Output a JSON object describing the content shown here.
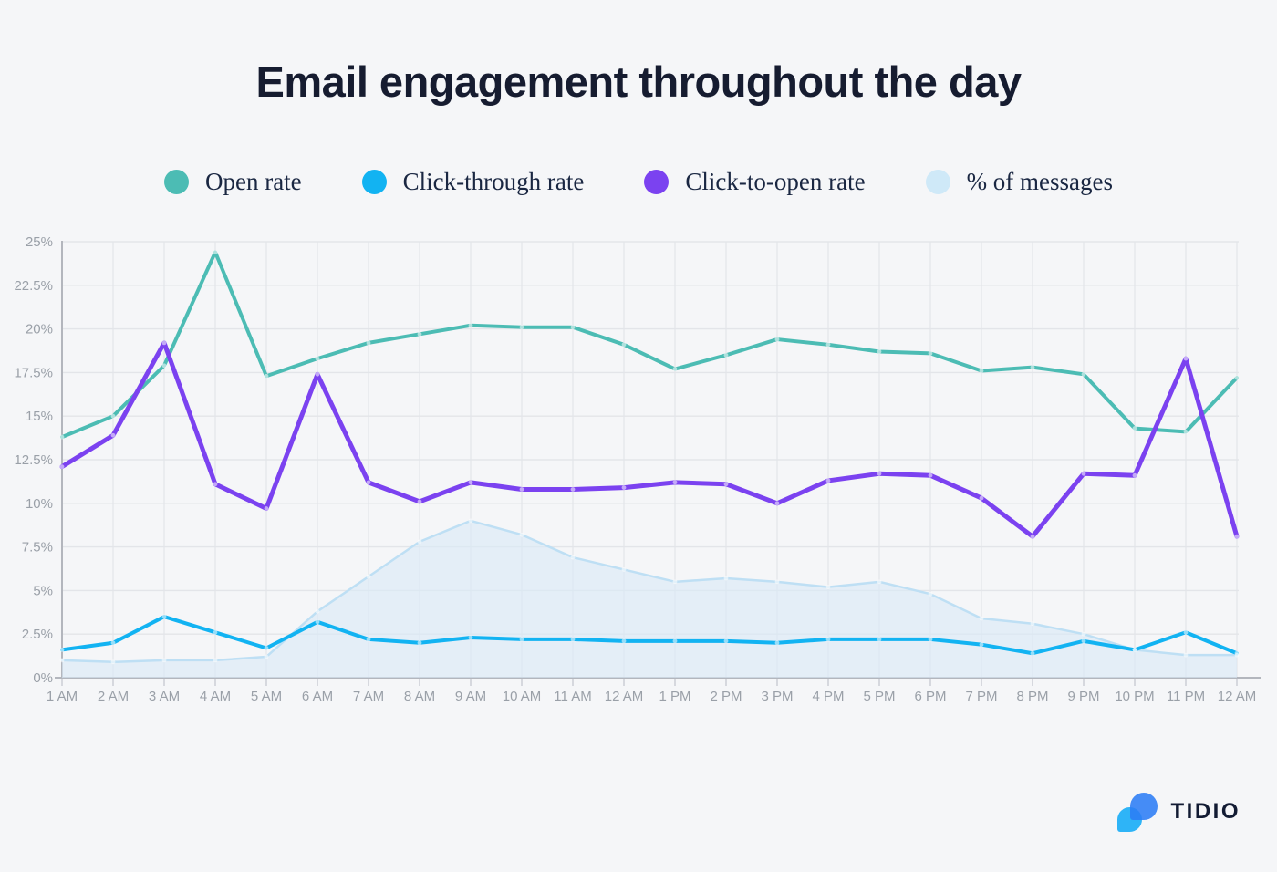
{
  "title": "Email engagement throughout the day",
  "brand": {
    "name": "TIDIO"
  },
  "colors": {
    "background": "#f5f6f8",
    "grid": "#e3e5e9",
    "axis": "#b3b6bd",
    "tick_text": "#9aa0a8",
    "title_text": "#161c30",
    "legend_text": "#1a2742",
    "logo_bubble_light": "#2eb4f7",
    "logo_bubble_dark": "#2c7df5"
  },
  "legend": [
    {
      "label": "Open rate",
      "color": "#4cbcb4"
    },
    {
      "label": "Click-through rate",
      "color": "#12b3f2"
    },
    {
      "label": "Click-to-open rate",
      "color": "#7b42f0"
    },
    {
      "label": "% of messages",
      "color": "#cfe9f8"
    }
  ],
  "chart_data": {
    "type": "line",
    "x": [
      "1 AM",
      "2 AM",
      "3 AM",
      "4 AM",
      "5 AM",
      "6 AM",
      "7 AM",
      "8 AM",
      "9 AM",
      "10 AM",
      "11 AM",
      "12 AM",
      "1 PM",
      "2 PM",
      "3 PM",
      "4 PM",
      "5 PM",
      "6 PM",
      "7 PM",
      "8 PM",
      "9 PM",
      "10 PM",
      "11 PM",
      "12 AM"
    ],
    "y_ticks": [
      "0%",
      "2.5%",
      "5%",
      "7.5%",
      "10%",
      "12.5%",
      "15%",
      "17.5%",
      "20%",
      "22.5%",
      "25%"
    ],
    "ylim": [
      0,
      25
    ],
    "grid": true,
    "legend_position": "top",
    "series": [
      {
        "name": "Open rate",
        "type": "line",
        "color": "#4cbcb4",
        "values": [
          13.8,
          15.0,
          17.9,
          24.4,
          17.3,
          18.3,
          19.2,
          19.7,
          20.2,
          20.1,
          20.1,
          19.1,
          17.7,
          18.5,
          19.4,
          19.1,
          18.7,
          18.6,
          17.6,
          17.8,
          17.4,
          14.3,
          14.1,
          17.2
        ]
      },
      {
        "name": "Click-through rate",
        "type": "line",
        "color": "#12b3f2",
        "values": [
          1.6,
          2.0,
          3.5,
          2.6,
          1.7,
          3.2,
          2.2,
          2.0,
          2.3,
          2.2,
          2.2,
          2.1,
          2.1,
          2.1,
          2.0,
          2.2,
          2.2,
          2.2,
          1.9,
          1.4,
          2.1,
          1.6,
          2.6,
          1.4
        ]
      },
      {
        "name": "Click-to-open rate",
        "type": "line",
        "color": "#7b42f0",
        "values": [
          12.1,
          13.9,
          19.2,
          11.1,
          9.7,
          17.4,
          11.2,
          10.1,
          11.2,
          10.8,
          10.8,
          10.9,
          11.2,
          11.1,
          10.0,
          11.3,
          11.7,
          11.6,
          10.3,
          8.1,
          11.7,
          11.6,
          18.3,
          8.1
        ]
      },
      {
        "name": "% of messages",
        "type": "area",
        "color": "#bedff4",
        "fill": "#d8e9f6",
        "values": [
          1.0,
          0.9,
          1.0,
          1.0,
          1.2,
          3.8,
          5.8,
          7.8,
          9.0,
          8.2,
          6.9,
          6.2,
          5.5,
          5.7,
          5.5,
          5.2,
          5.5,
          4.8,
          3.4,
          3.1,
          2.5,
          1.6,
          1.3,
          1.3
        ]
      }
    ]
  }
}
